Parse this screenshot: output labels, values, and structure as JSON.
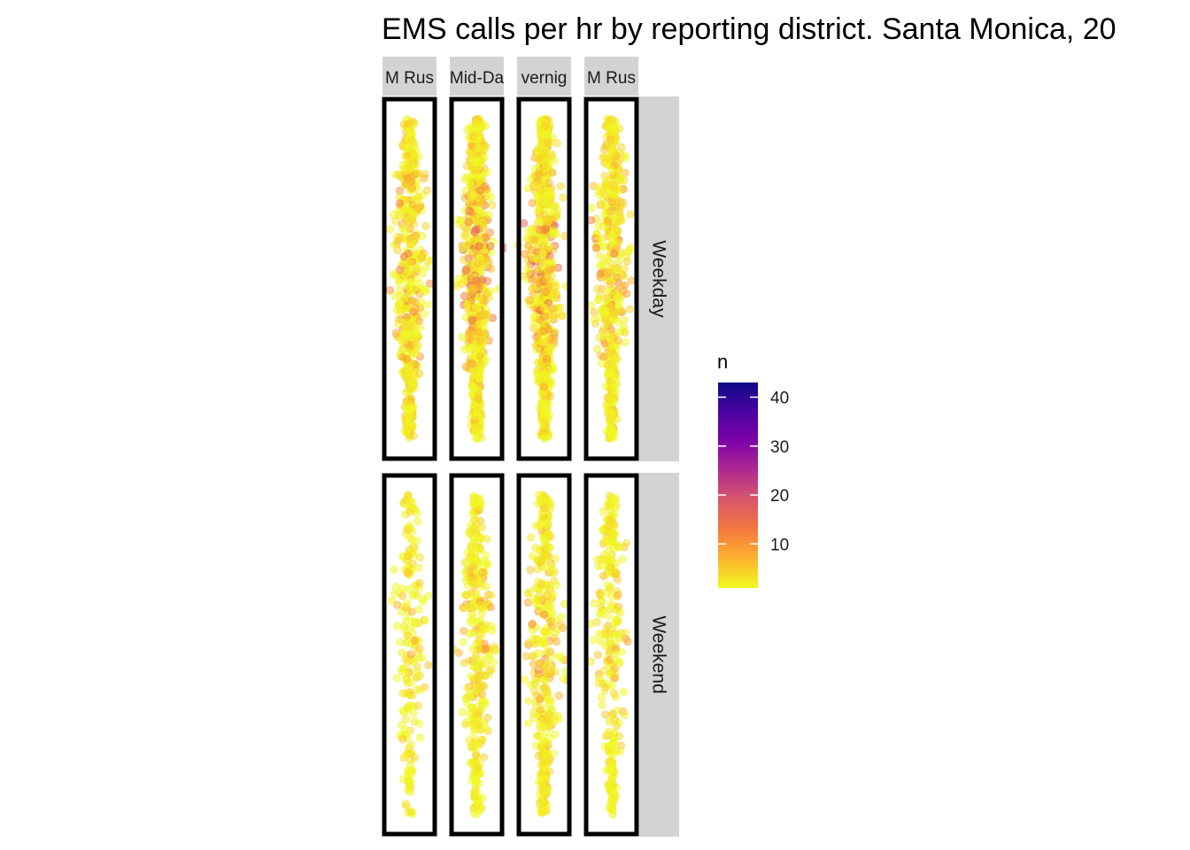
{
  "chart_data": {
    "type": "scatter",
    "title": "EMS calls per hr by reporting district. Santa Monica, 20",
    "xlabel": "",
    "ylabel": "",
    "grid": false,
    "column_facets": [
      "M Rus",
      "Mid-Da",
      "vernig",
      "M Rus"
    ],
    "row_facets": [
      "Weekday",
      "Weekend"
    ],
    "color_scale": {
      "title": "n",
      "type": "continuous",
      "palette": "plasma (reversed)",
      "range": [
        1,
        43
      ],
      "ticks": [
        10,
        20,
        30,
        40
      ],
      "colors": [
        "#f0f921",
        "#fdb32f",
        "#f3783e",
        "#d8576b",
        "#b12a90",
        "#7e03a8",
        "#4b03a1",
        "#0d0887"
      ]
    },
    "legend_position": "right",
    "point_alpha": 0.5,
    "panels": [
      {
        "row": "Weekday",
        "col": 1,
        "points": 520,
        "max_n": 16
      },
      {
        "row": "Weekday",
        "col": 2,
        "points": 700,
        "max_n": 18
      },
      {
        "row": "Weekday",
        "col": 3,
        "points": 700,
        "max_n": 18
      },
      {
        "row": "Weekday",
        "col": 4,
        "points": 520,
        "max_n": 14
      },
      {
        "row": "Weekend",
        "col": 1,
        "points": 200,
        "max_n": 9
      },
      {
        "row": "Weekend",
        "col": 2,
        "points": 360,
        "max_n": 11
      },
      {
        "row": "Weekend",
        "col": 3,
        "points": 380,
        "max_n": 12
      },
      {
        "row": "Weekend",
        "col": 4,
        "points": 280,
        "max_n": 9
      }
    ]
  }
}
